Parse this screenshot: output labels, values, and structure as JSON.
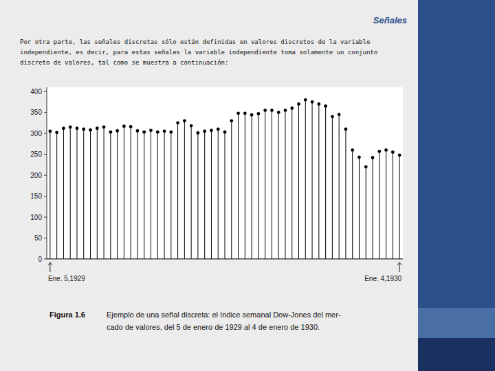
{
  "chart_data": {
    "type": "stem",
    "title": "Señales",
    "annotations": [
      "Por otra parte, las señales discretas sólo están definidas en valores discretos de la variable",
      "independiente, es decir, para estas señales la variable independiente toma solamente un conjunto",
      "discreto de valores, tal como se muestra a continuación:",
      "Figura 1.6",
      "Ejemplo de una señal discreta: el índice semanal Dow-Jones del mer-",
      "cado de valores, del 5 de enero de 1929 al 4 de enero de 1930."
    ],
    "categories": [
      "Ene. 5,1929",
      null,
      null,
      null,
      null,
      null,
      null,
      null,
      null,
      null,
      null,
      null,
      null,
      null,
      null,
      null,
      null,
      null,
      null,
      null,
      null,
      null,
      null,
      null,
      null,
      null,
      null,
      null,
      null,
      null,
      null,
      null,
      null,
      null,
      null,
      null,
      null,
      null,
      null,
      null,
      null,
      null,
      null,
      null,
      null,
      null,
      null,
      null,
      null,
      null,
      null,
      null,
      "Ene. 4,1930"
    ],
    "values": [
      305,
      302,
      312,
      315,
      312,
      310,
      308,
      312,
      315,
      303,
      306,
      317,
      316,
      306,
      303,
      307,
      303,
      305,
      303,
      325,
      330,
      318,
      301,
      305,
      307,
      310,
      303,
      330,
      348,
      348,
      344,
      347,
      355,
      355,
      350,
      355,
      360,
      370,
      380,
      375,
      370,
      365,
      340,
      345,
      310,
      260,
      243,
      220,
      242,
      257,
      260,
      255,
      248
    ],
    "color": "#000000",
    "marker": "circle",
    "ylim": [
      0,
      410
    ],
    "yticks": [
      0,
      50,
      100,
      150,
      200,
      250,
      300,
      350,
      400
    ],
    "grid": false
  }
}
